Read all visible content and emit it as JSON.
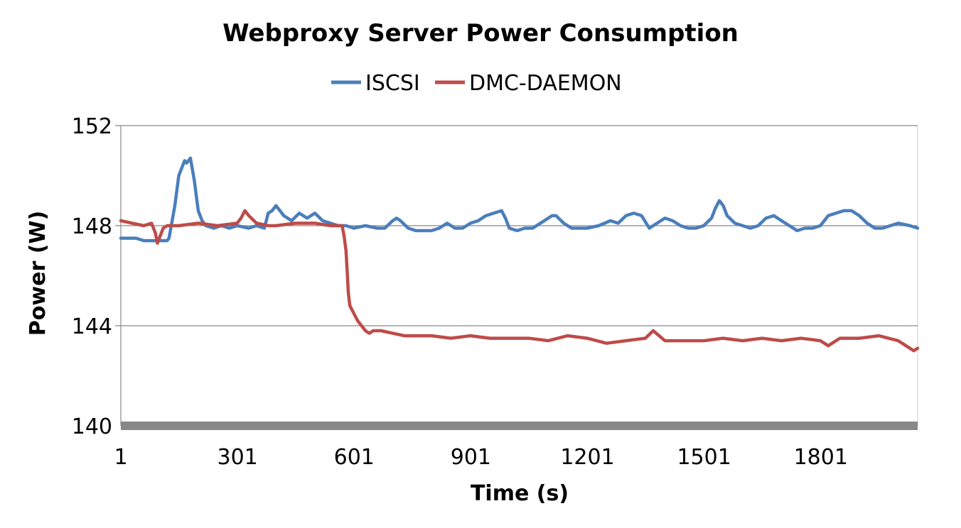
{
  "chart_data": {
    "type": "line",
    "title": "Webproxy Server Power Consumption",
    "xlabel": "Time (s)",
    "ylabel": "Power (W)",
    "x_ticks": [
      "1",
      "301",
      "601",
      "901",
      "1201",
      "1501",
      "1801"
    ],
    "y_ticks": [
      "140",
      "144",
      "148",
      "152"
    ],
    "xlim": [
      1,
      2050
    ],
    "ylim": [
      140,
      152
    ],
    "grid": "horizontal",
    "legend_position": "top",
    "series": [
      {
        "name": "ISCSI",
        "color": "#4a7ebb",
        "x": [
          1,
          40,
          60,
          80,
          120,
          125,
          140,
          150,
          160,
          165,
          170,
          180,
          190,
          200,
          210,
          220,
          240,
          260,
          280,
          300,
          330,
          350,
          370,
          380,
          390,
          400,
          420,
          440,
          460,
          480,
          500,
          520,
          540,
          560,
          580,
          600,
          630,
          660,
          680,
          700,
          710,
          720,
          740,
          760,
          780,
          800,
          820,
          840,
          860,
          880,
          900,
          920,
          940,
          960,
          980,
          990,
          1000,
          1020,
          1040,
          1060,
          1080,
          1100,
          1110,
          1120,
          1140,
          1160,
          1180,
          1200,
          1230,
          1260,
          1280,
          1300,
          1320,
          1340,
          1360,
          1380,
          1400,
          1420,
          1440,
          1460,
          1480,
          1500,
          1520,
          1530,
          1540,
          1550,
          1560,
          1580,
          1600,
          1620,
          1640,
          1660,
          1680,
          1700,
          1720,
          1740,
          1760,
          1780,
          1800,
          1820,
          1840,
          1860,
          1880,
          1900,
          1920,
          1940,
          1960,
          1980,
          2000,
          2030,
          2050
        ],
        "values": [
          147.5,
          147.5,
          147.4,
          147.4,
          147.4,
          147.5,
          148.8,
          150.0,
          150.4,
          150.6,
          150.5,
          150.7,
          149.8,
          148.6,
          148.2,
          148.0,
          147.9,
          148.0,
          147.9,
          148.0,
          147.9,
          148.0,
          147.9,
          148.5,
          148.6,
          148.8,
          148.4,
          148.2,
          148.5,
          148.3,
          148.5,
          148.2,
          148.1,
          148.0,
          148.0,
          147.9,
          148.0,
          147.9,
          147.9,
          148.2,
          148.3,
          148.2,
          147.9,
          147.8,
          147.8,
          147.8,
          147.9,
          148.1,
          147.9,
          147.9,
          148.1,
          148.2,
          148.4,
          148.5,
          148.6,
          148.3,
          147.9,
          147.8,
          147.9,
          147.9,
          148.1,
          148.3,
          148.4,
          148.4,
          148.1,
          147.9,
          147.9,
          147.9,
          148.0,
          148.2,
          148.1,
          148.4,
          148.5,
          148.4,
          147.9,
          148.1,
          148.3,
          148.2,
          148.0,
          147.9,
          147.9,
          148.0,
          148.3,
          148.7,
          149.0,
          148.8,
          148.4,
          148.1,
          148.0,
          147.9,
          148.0,
          148.3,
          148.4,
          148.2,
          148.0,
          147.8,
          147.9,
          147.9,
          148.0,
          148.4,
          148.5,
          148.6,
          148.6,
          148.4,
          148.1,
          147.9,
          147.9,
          148.0,
          148.1,
          148.0,
          147.9
        ]
      },
      {
        "name": "DMC-DAEMON",
        "color": "#be4b48",
        "x": [
          1,
          30,
          60,
          80,
          90,
          95,
          100,
          110,
          120,
          130,
          150,
          200,
          250,
          300,
          310,
          320,
          330,
          350,
          380,
          400,
          450,
          500,
          540,
          570,
          575,
          580,
          583,
          586,
          590,
          600,
          610,
          620,
          630,
          640,
          650,
          670,
          700,
          730,
          760,
          800,
          850,
          900,
          950,
          1000,
          1050,
          1100,
          1150,
          1200,
          1250,
          1300,
          1350,
          1370,
          1400,
          1450,
          1500,
          1550,
          1600,
          1650,
          1700,
          1750,
          1800,
          1820,
          1850,
          1900,
          1950,
          2000,
          2020,
          2040,
          2050
        ],
        "values": [
          148.2,
          148.1,
          148.0,
          148.1,
          147.7,
          147.3,
          147.5,
          147.9,
          148.0,
          148.0,
          148.0,
          148.1,
          148.0,
          148.1,
          148.3,
          148.6,
          148.4,
          148.1,
          148.0,
          148.0,
          148.1,
          148.1,
          148.0,
          148.0,
          147.6,
          147.0,
          146.2,
          145.3,
          144.8,
          144.5,
          144.2,
          144.0,
          143.8,
          143.7,
          143.8,
          143.8,
          143.7,
          143.6,
          143.6,
          143.6,
          143.5,
          143.6,
          143.5,
          143.5,
          143.5,
          143.4,
          143.6,
          143.5,
          143.3,
          143.4,
          143.5,
          143.8,
          143.4,
          143.4,
          143.4,
          143.5,
          143.4,
          143.5,
          143.4,
          143.5,
          143.4,
          143.2,
          143.5,
          143.5,
          143.6,
          143.4,
          143.2,
          143.0,
          143.1
        ]
      }
    ]
  }
}
